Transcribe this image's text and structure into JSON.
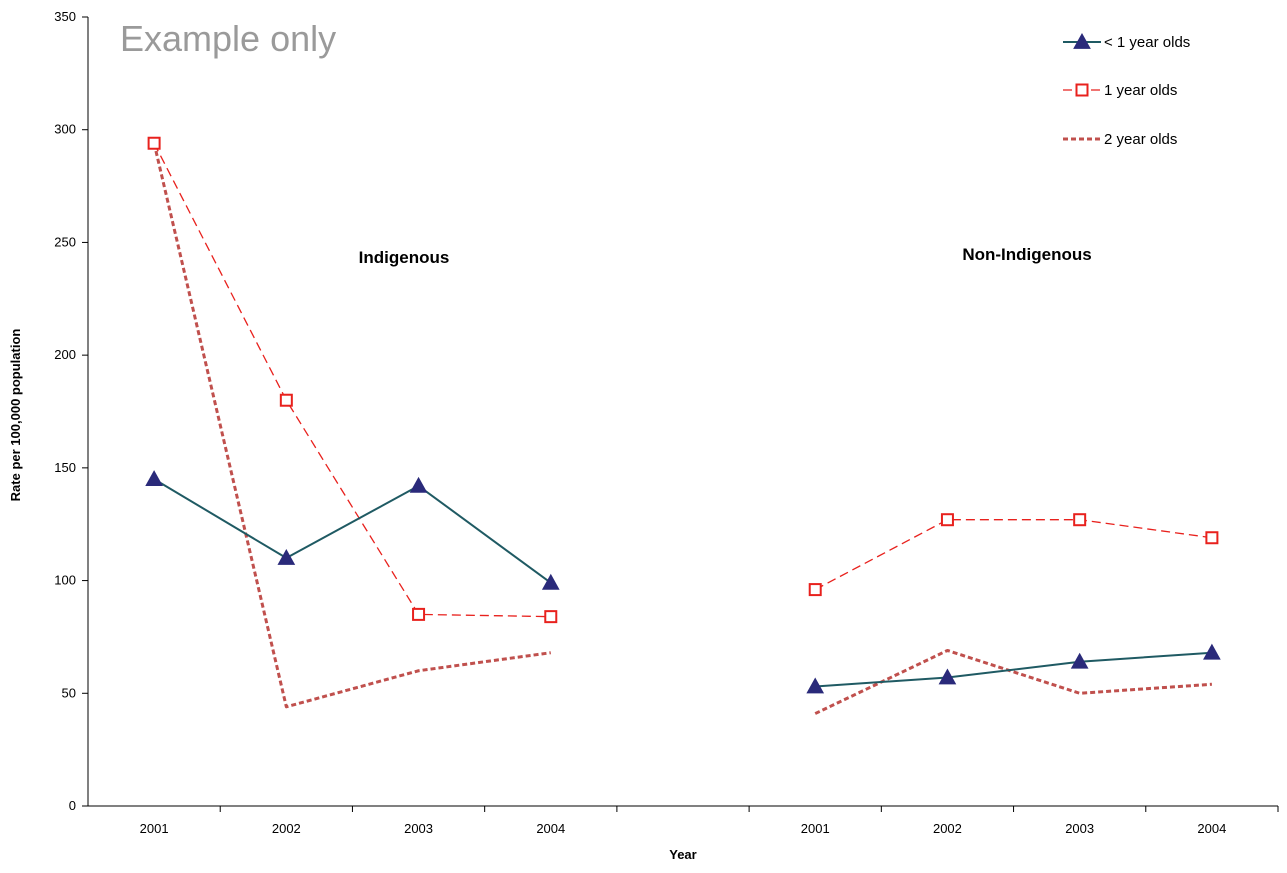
{
  "watermark": "Example only",
  "colors": {
    "under1": "#1f5a63",
    "under1_marker": "#2a2a7a",
    "one_year": "#e8211d",
    "two_year": "#c0504d",
    "axis": "#000000"
  },
  "chart_data": {
    "type": "line",
    "title": "",
    "xlabel": "Year",
    "ylabel": "Rate per 100,000 population",
    "ylim": [
      0,
      350
    ],
    "yticks": [
      "0",
      "50",
      "100",
      "150",
      "200",
      "250",
      "300",
      "350"
    ],
    "grid": false,
    "legend_position": "top-right",
    "groups": [
      {
        "label": "Indigenous",
        "categories": [
          "2001",
          "2002",
          "2003",
          "2004"
        ]
      },
      {
        "label": "Non-Indigenous",
        "categories": [
          "2001",
          "2002",
          "2003",
          "2004"
        ]
      }
    ],
    "series": [
      {
        "key": "under1",
        "name": "< 1 year olds",
        "marker": "triangle",
        "line": "solid",
        "values": [
          [
            145,
            110,
            142,
            99
          ],
          [
            53,
            57,
            64,
            68
          ]
        ]
      },
      {
        "key": "one_year",
        "name": "1 year olds",
        "marker": "square",
        "line": "dashed",
        "values": [
          [
            294,
            180,
            85,
            84
          ],
          [
            96,
            127,
            127,
            119
          ]
        ]
      },
      {
        "key": "two_year",
        "name": "2 year olds",
        "marker": "none",
        "line": "short-dash",
        "values": [
          [
            294,
            44,
            60,
            68
          ],
          [
            41,
            69,
            50,
            54
          ]
        ]
      }
    ]
  }
}
